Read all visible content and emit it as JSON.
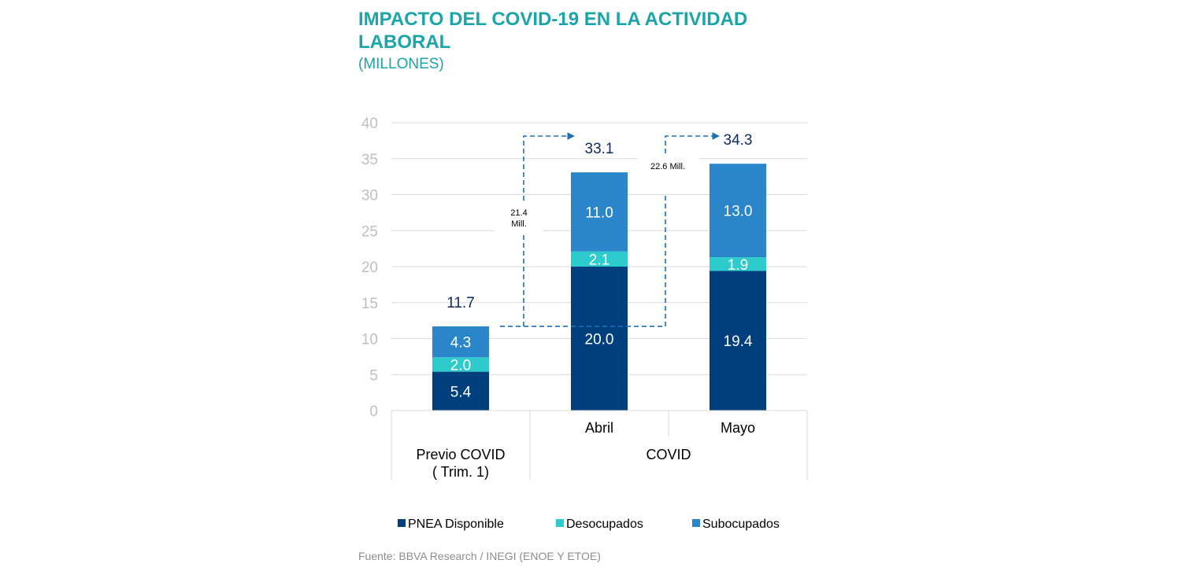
{
  "chart_data": {
    "type": "bar",
    "stacked": true,
    "title": "IMPACTO DEL COVID-19 EN LA ACTIVIDAD LABORAL",
    "subtitle": "(MILLONES)",
    "categories": [
      "Previo COVID\n( Trim. 1)",
      "Abril",
      "Mayo"
    ],
    "groups": [
      {
        "label": "Previo COVID\n( Trim. 1)",
        "categories": [
          0
        ]
      },
      {
        "label": "COVID",
        "categories": [
          1,
          2
        ]
      }
    ],
    "series": [
      {
        "name": "PNEA Disponible",
        "color": "#003f7d",
        "values": [
          5.4,
          20.0,
          19.4
        ],
        "labels": [
          "5.4",
          "20.0",
          "19.4"
        ]
      },
      {
        "name": "Desocupados",
        "color": "#2ecbcd",
        "values": [
          2.0,
          2.1,
          1.9
        ],
        "labels": [
          "2.0",
          "2.1",
          "1.9"
        ]
      },
      {
        "name": "Subocupados",
        "color": "#2a86c8",
        "values": [
          4.3,
          11.0,
          13.0
        ],
        "labels": [
          "4.3",
          "11.0",
          "13.0"
        ]
      }
    ],
    "totals": [
      11.7,
      33.1,
      34.3
    ],
    "total_labels": [
      "11.7",
      "33.1",
      "34.3"
    ],
    "ylim": [
      0,
      40
    ],
    "yticks": [
      0,
      5,
      10,
      15,
      20,
      25,
      30,
      35,
      40
    ],
    "grid": true,
    "legend": "bottom",
    "annotations": [
      {
        "lines": [
          "21.4",
          "Mill."
        ],
        "from": 0,
        "to": 1
      },
      {
        "lines": [
          "22.6 Mill."
        ],
        "from": 0,
        "to": 2
      }
    ],
    "arrow_color": "#1f6fb5"
  },
  "source": "Fuente: BBVA Research / INEGI (ENOE Y ETOE)"
}
